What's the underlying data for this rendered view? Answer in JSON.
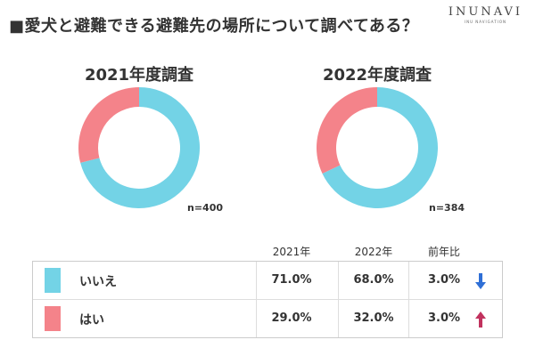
{
  "title": "■愛犬と避難できる避難先の場所について調べてある？",
  "logo": {
    "main": "INUNAVI",
    "sub": "INU NAVIGATION"
  },
  "colors": {
    "no": "#73d3e6",
    "yes": "#f4838a",
    "down_arrow": "#2f6fd6",
    "up_arrow": "#c1325e"
  },
  "chart_data": [
    {
      "type": "pie",
      "title": "2021年度調査",
      "n_label": "n=400",
      "categories": [
        "いいえ",
        "はい"
      ],
      "values": [
        71.0,
        29.0
      ],
      "unit": "%"
    },
    {
      "type": "pie",
      "title": "2022年度調査",
      "n_label": "n=384",
      "categories": [
        "いいえ",
        "はい"
      ],
      "values": [
        68.0,
        32.0
      ],
      "unit": "%"
    }
  ],
  "table": {
    "headers": [
      "2021年",
      "2022年",
      "前年比"
    ],
    "rows": [
      {
        "label": "いいえ",
        "cells": [
          "71.0%",
          "68.0%",
          "3.0%"
        ],
        "trend": "down-arrow-icon"
      },
      {
        "label": "はい",
        "cells": [
          "29.0%",
          "32.0%",
          "3.0%"
        ],
        "trend": "up-arrow-icon"
      }
    ]
  }
}
